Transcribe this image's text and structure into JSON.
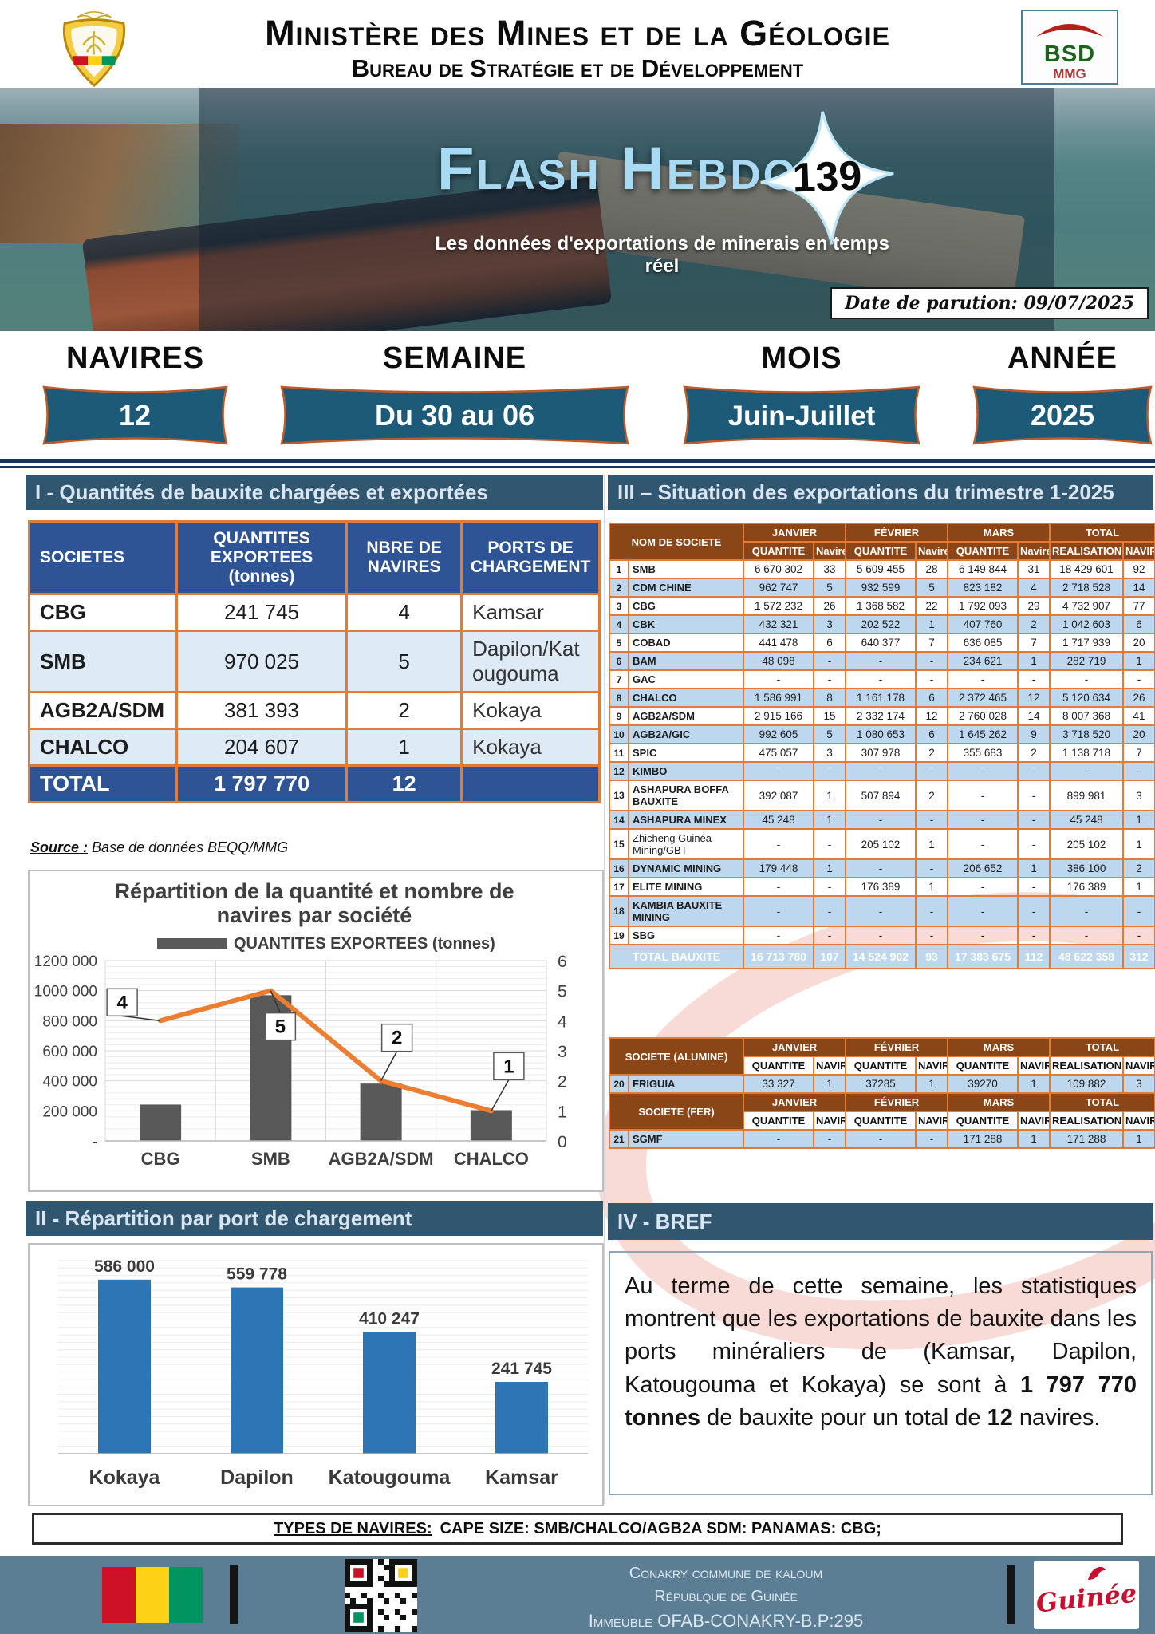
{
  "header": {
    "title1": "Ministère des Mines et de la Géologie",
    "title2": "Bureau de Stratégie et de Développement",
    "bsd": {
      "line1": "BSD",
      "line2": "MMG"
    }
  },
  "banner": {
    "title": "Flash Hebdo",
    "issue": "139",
    "subtitle": "Les données d'exportations de minerais en temps réel",
    "date_label": "Date de parution: 09/07/2025"
  },
  "stats": [
    {
      "label": "NAVIRES",
      "value": "12"
    },
    {
      "label": "SEMAINE",
      "value": "Du 30 au 06"
    },
    {
      "label": "MOIS",
      "value": "Juin-Juillet"
    },
    {
      "label": "ANNÉE",
      "value": "2025"
    }
  ],
  "sec1": {
    "heading": "I - Quantités de bauxite chargées et exportées",
    "columns": [
      "SOCIETES",
      "QUANTITES EXPORTEES (tonnes)",
      "NBRE DE NAVIRES",
      "PORTS DE CHARGEMENT"
    ],
    "rows": [
      [
        "CBG",
        "241 745",
        "4",
        "Kamsar"
      ],
      [
        "SMB",
        "970 025",
        "5",
        "Dapilon/Katougouma"
      ],
      [
        "AGB2A/SDM",
        "381 393",
        "2",
        "Kokaya"
      ],
      [
        "CHALCO",
        "204 607",
        "1",
        "Kokaya"
      ]
    ],
    "total": [
      "TOTAL",
      "1 797 770",
      "12",
      ""
    ],
    "source_label": "Source :",
    "source_text": "Base de données BEQQ/MMG"
  },
  "sec2": {
    "heading": "II -  Répartition par port de chargement"
  },
  "sec3": {
    "heading": "III –  Situation des exportations du trimestre 1-2025",
    "col_head": {
      "name": "NOM DE SOCIETE",
      "months": [
        "JANVIER",
        "FÉVRIER",
        "MARS",
        "TOTAL"
      ],
      "sub": [
        "QUANTITE",
        "Navire",
        "QUANTITE",
        "Navire",
        "QUANTITE",
        "Navire",
        "REALISATION",
        "NAVIRE"
      ]
    },
    "rows": [
      {
        "n": "1",
        "name": "SMB",
        "v": [
          "6 670 302",
          "33",
          "5 609 455",
          "28",
          "6 149 844",
          "31",
          "18 429 601",
          "92"
        ]
      },
      {
        "n": "2",
        "name": "CDM CHINE",
        "v": [
          "962 747",
          "5",
          "932 599",
          "5",
          "823 182",
          "4",
          "2 718 528",
          "14"
        ]
      },
      {
        "n": "3",
        "name": "CBG",
        "v": [
          "1 572 232",
          "26",
          "1 368 582",
          "22",
          "1 792 093",
          "29",
          "4 732 907",
          "77"
        ]
      },
      {
        "n": "4",
        "name": "CBK",
        "v": [
          "432 321",
          "3",
          "202 522",
          "1",
          "407 760",
          "2",
          "1 042 603",
          "6"
        ]
      },
      {
        "n": "5",
        "name": "COBAD",
        "v": [
          "441 478",
          "6",
          "640 377",
          "7",
          "636 085",
          "7",
          "1 717 939",
          "20"
        ]
      },
      {
        "n": "6",
        "name": "BAM",
        "v": [
          "48 098",
          "-",
          "-",
          "-",
          "234 621",
          "1",
          "282 719",
          "1"
        ]
      },
      {
        "n": "7",
        "name": "GAC",
        "v": [
          "-",
          "-",
          "-",
          "-",
          "-",
          "-",
          "-",
          "-"
        ]
      },
      {
        "n": "8",
        "name": "CHALCO",
        "v": [
          "1 586 991",
          "8",
          "1 161 178",
          "6",
          "2 372 465",
          "12",
          "5 120 634",
          "26"
        ]
      },
      {
        "n": "9",
        "name": "AGB2A/SDM",
        "v": [
          "2 915 166",
          "15",
          "2 332 174",
          "12",
          "2 760 028",
          "14",
          "8 007 368",
          "41"
        ]
      },
      {
        "n": "10",
        "name": "AGB2A/GIC",
        "v": [
          "992 605",
          "5",
          "1 080 653",
          "6",
          "1 645 262",
          "9",
          "3 718 520",
          "20"
        ]
      },
      {
        "n": "11",
        "name": "SPIC",
        "v": [
          "475 057",
          "3",
          "307 978",
          "2",
          "355 683",
          "2",
          "1 138 718",
          "7"
        ]
      },
      {
        "n": "12",
        "name": "KIMBO",
        "v": [
          "-",
          "-",
          "-",
          "-",
          "-",
          "-",
          "-",
          "-"
        ]
      },
      {
        "n": "13",
        "name": "ASHAPURA BOFFA BAUXITE",
        "v": [
          "392 087",
          "1",
          "507 894",
          "2",
          "-",
          "-",
          "899 981",
          "3"
        ]
      },
      {
        "n": "14",
        "name": "ASHAPURA MINEX",
        "v": [
          "45 248",
          "1",
          "-",
          "-",
          "-",
          "-",
          "45 248",
          "1"
        ]
      },
      {
        "n": "15",
        "name": "Zhicheng Guinéa Mining/GBT",
        "light": true,
        "v": [
          "-",
          "-",
          "205 102",
          "1",
          "-",
          "-",
          "205 102",
          "1"
        ]
      },
      {
        "n": "16",
        "name": "DYNAMIC MINING",
        "v": [
          "179 448",
          "1",
          "-",
          "-",
          "206 652",
          "1",
          "386 100",
          "2"
        ]
      },
      {
        "n": "17",
        "name": "ELITE MINING",
        "v": [
          "-",
          "-",
          "176 389",
          "1",
          "-",
          "-",
          "176 389",
          "1"
        ]
      },
      {
        "n": "18",
        "name": "KAMBIA BAUXITE MINING",
        "v": [
          "-",
          "-",
          "-",
          "-",
          "-",
          "-",
          "-",
          "-"
        ]
      },
      {
        "n": "19",
        "name": "SBG",
        "v": [
          "-",
          "-",
          "-",
          "-",
          "-",
          "-",
          "-",
          "-"
        ]
      }
    ],
    "total": {
      "label": "TOTAL BAUXITE",
      "v": [
        "16 713 780",
        "107",
        "14 524 902",
        "93",
        "17 383 675",
        "112",
        "48 622 358",
        "312"
      ]
    },
    "mini": {
      "months": [
        "JANVIER",
        "FÉVRIER",
        "MARS",
        "TOTAL"
      ],
      "sub": [
        "QUANTITE",
        "NAVIRE",
        "QUANTITE",
        "NAVIRE",
        "QUANTITE",
        "NAVIRE",
        "REALISATION",
        "NAVIRE"
      ]
    },
    "alumine": {
      "label": "SOCIETE (ALUMINE)",
      "row": {
        "n": "20",
        "name": "FRIGUIA",
        "v": [
          "33 327",
          "1",
          "37285",
          "1",
          "39270",
          "1",
          "109 882",
          "3"
        ]
      }
    },
    "fer": {
      "label": "SOCIETE (FER)",
      "row": {
        "n": "21",
        "name": "SGMF",
        "v": [
          "-",
          "-",
          "-",
          "-",
          "171 288",
          "1",
          "171 288",
          "1"
        ]
      }
    }
  },
  "sec4": {
    "heading": "IV - BREF",
    "text_parts": [
      "Au terme de cette semaine, les statistiques montrent que les exportations de bauxite dans les ports minéraliers de (Kamsar, Dapilon, Katougouma et Kokaya) se sont à ",
      "1 797 770 tonnes",
      " de bauxite pour un total de ",
      "12",
      " navires."
    ]
  },
  "chart_data": [
    {
      "type": "combo-bar-line",
      "title_lines": [
        "Répartition de la quantité et nombre de",
        "navires par société"
      ],
      "legend": "QUANTITES EXPORTEES (tonnes)",
      "categories": [
        "CBG",
        "SMB",
        "AGB2A/SDM",
        "CHALCO"
      ],
      "series": [
        {
          "name": "QUANTITES EXPORTEES (tonnes)",
          "type": "bar",
          "axis": "left",
          "values": [
            241745,
            970025,
            381393,
            204607
          ]
        },
        {
          "name": "NBRE DE NAVIRES",
          "type": "line",
          "axis": "right",
          "values": [
            4,
            5,
            2,
            1
          ]
        }
      ],
      "left_axis": {
        "ticks": [
          "1200 000",
          "1000 000",
          "800 000",
          "600 000",
          "400 000",
          "200 000",
          "-"
        ],
        "min": 0,
        "max": 1200000
      },
      "right_axis": {
        "ticks": [
          "6",
          "5",
          "4",
          "3",
          "2",
          "1",
          "0"
        ],
        "min": 0,
        "max": 6
      },
      "bar_color": "#595959",
      "line_color": "#ED7D31",
      "grid": true,
      "legend_position": "top"
    },
    {
      "type": "bar",
      "categories": [
        "Kokaya",
        "Dapilon",
        "Katougouma",
        "Kamsar"
      ],
      "values": [
        586000,
        559778,
        410247,
        241745
      ],
      "value_labels": [
        "586 000",
        "559 778",
        "410 247",
        "241 745"
      ],
      "title": "",
      "xlabel": "",
      "ylabel": "",
      "ylim": [
        0,
        650000
      ],
      "bar_color": "#2E75B6",
      "grid": true
    }
  ],
  "footer": {
    "types_label": "TYPES DE NAVIRES:",
    "types_text": "CAPE SIZE: SMB/CHALCO/AGB2A SDM:  PANAMAS: CBG;",
    "address1": "Conakry commune de kaloum",
    "address2": "Républque de Guinée",
    "address3": "Immeuble OFAB-CONAKRY-B.P:295",
    "logo_text": "Guinée"
  }
}
